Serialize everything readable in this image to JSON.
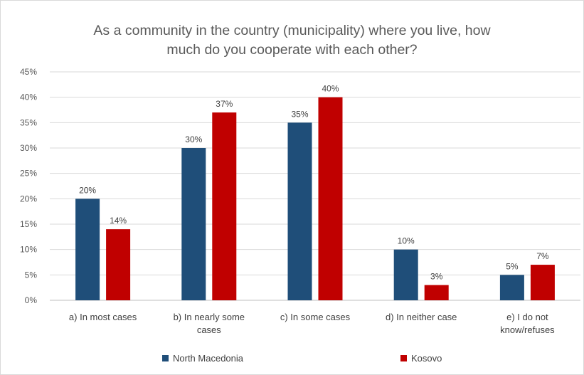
{
  "chart_data": {
    "type": "bar",
    "title_lines": [
      "As a community in the country (municipality) where you live, how",
      "much do you cooperate with each other?"
    ],
    "categories": [
      [
        "a) In most cases"
      ],
      [
        "b) In nearly some",
        "cases"
      ],
      [
        "c) In some cases"
      ],
      [
        "d) In neither case"
      ],
      [
        "e) I do not",
        "know/refuses"
      ]
    ],
    "series": [
      {
        "name": "North Macedonia",
        "color": "#1f4e79",
        "values": [
          20,
          30,
          35,
          10,
          5
        ],
        "labels": [
          "20%",
          "30%",
          "35%",
          "10%",
          "5%"
        ]
      },
      {
        "name": "Kosovo",
        "color": "#c00000",
        "values": [
          14,
          37,
          40,
          3,
          7
        ],
        "labels": [
          "14%",
          "37%",
          "40%",
          "3%",
          "7%"
        ]
      }
    ],
    "ylim": [
      0,
      45
    ],
    "yticks": [
      {
        "value": 45,
        "label": "45%"
      },
      {
        "value": 40,
        "label": "40%"
      },
      {
        "value": 35,
        "label": "35%"
      },
      {
        "value": 30,
        "label": "30%"
      },
      {
        "value": 25,
        "label": "25%"
      },
      {
        "value": 20,
        "label": "20%"
      },
      {
        "value": 15,
        "label": "15%"
      },
      {
        "value": 10,
        "label": "10%"
      },
      {
        "value": 5,
        "label": "5%"
      },
      {
        "value": 0,
        "label": "0%"
      }
    ],
    "grid": true,
    "legend_position": "bottom"
  }
}
